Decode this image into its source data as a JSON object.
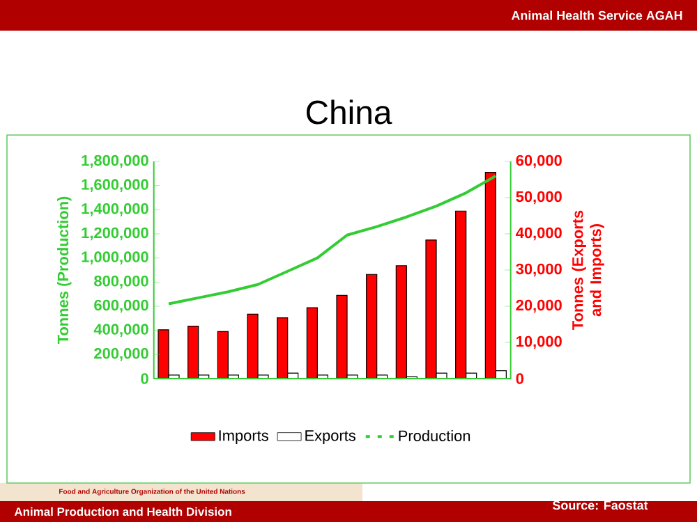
{
  "chart_data": {
    "type": "bar",
    "title": "China",
    "categories": [
      null,
      null,
      null,
      null,
      null,
      null,
      null,
      null,
      null,
      null,
      null,
      null
    ],
    "series": [
      {
        "name": "Imports",
        "axis": "y2",
        "color": "#ff0000",
        "values": [
          13500,
          14500,
          13000,
          17800,
          16800,
          19600,
          23000,
          28800,
          31200,
          38300,
          46300,
          57000
        ]
      },
      {
        "name": "Exports",
        "axis": "y2",
        "color": "#ffffff",
        "values": [
          1000,
          1000,
          1000,
          1000,
          1500,
          1000,
          1000,
          1000,
          500,
          1500,
          1500,
          2200
        ]
      },
      {
        "name": "Production",
        "type": "line",
        "axis": "y",
        "color": "#33cc33",
        "values": [
          620000,
          670000,
          720000,
          780000,
          890000,
          1000000,
          1190000,
          1260000,
          1340000,
          1430000,
          1540000,
          1680000
        ]
      }
    ],
    "ylabel": "Tonnes (Production)",
    "y2label": "Tonnes (Exports and Imports)",
    "ylim": [
      0,
      1800000
    ],
    "yticks": [
      0,
      {
        "value": 200000,
        "label": "200,000"
      },
      {
        "value": 400000,
        "label": "400,000"
      },
      {
        "value": 600000,
        "label": "600,000"
      },
      {
        "value": 800000,
        "label": "800,000"
      },
      {
        "value": 1000000,
        "label": "1,000,000"
      },
      {
        "value": 1200000,
        "label": "1,200,000"
      },
      {
        "value": 1400000,
        "label": "1,400,000"
      },
      {
        "value": 1600000,
        "label": "1,600,000"
      },
      {
        "value": 1800000,
        "label": "1,800,000"
      }
    ],
    "y2lim": [
      0,
      60000
    ],
    "y2ticks": [
      0,
      {
        "value": 10000,
        "label": "10,000"
      },
      {
        "value": 20000,
        "label": "20,000"
      },
      {
        "value": 30000,
        "label": "30,000"
      },
      {
        "value": 40000,
        "label": "40,000"
      },
      {
        "value": 50000,
        "label": "50,000"
      },
      {
        "value": 60000,
        "label": "60,000"
      }
    ],
    "legend": "bottom",
    "annotations": [
      "Animal Health Service AGAH",
      "Food and Agriculture Organization of the United Nations",
      "Animal Production and Health Division",
      "Source: Faostat"
    ]
  }
}
